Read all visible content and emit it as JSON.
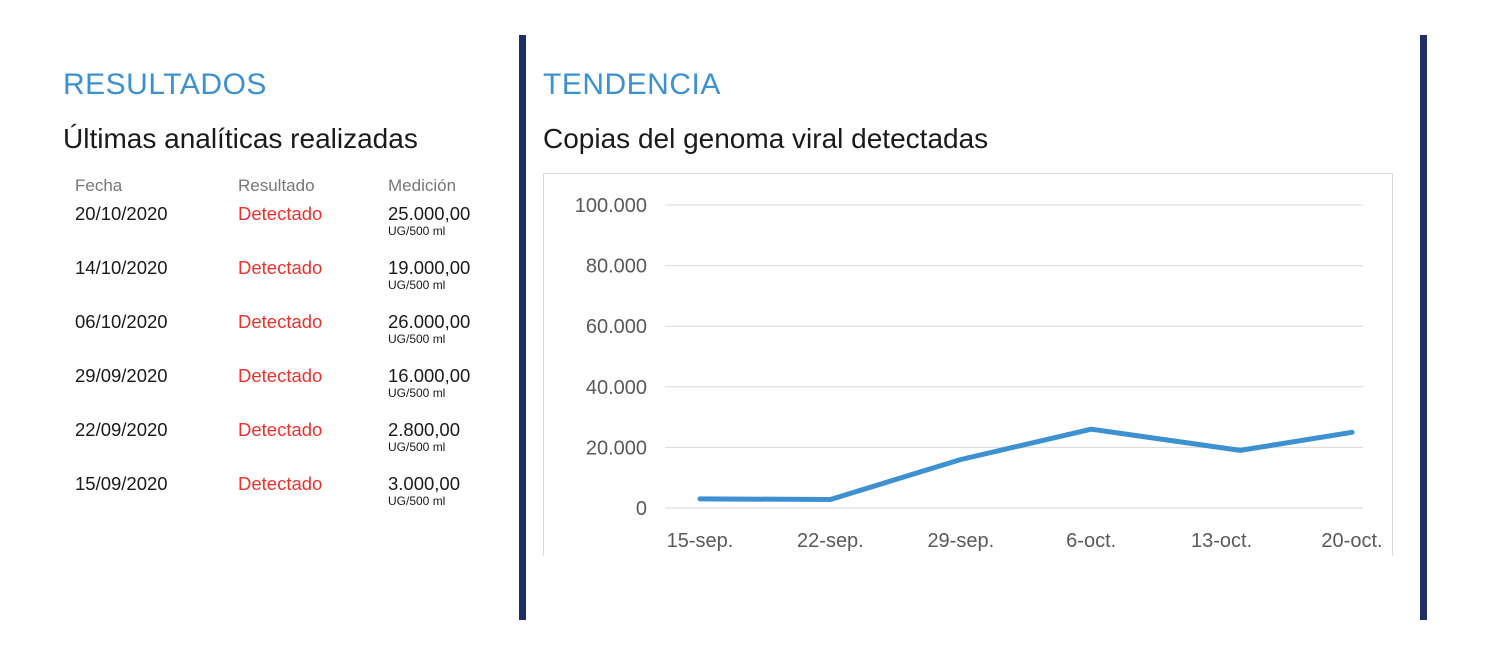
{
  "results": {
    "title": "RESULTADOS",
    "subtitle": "Últimas analíticas realizadas",
    "headers": {
      "date": "Fecha",
      "result": "Resultado",
      "measure": "Medición"
    },
    "rows": [
      {
        "date": "20/10/2020",
        "result": "Detectado",
        "value": "25.000,00",
        "unit": "UG/500 ml"
      },
      {
        "date": "14/10/2020",
        "result": "Detectado",
        "value": "19.000,00",
        "unit": "UG/500 ml"
      },
      {
        "date": "06/10/2020",
        "result": "Detectado",
        "value": "26.000,00",
        "unit": "UG/500 ml"
      },
      {
        "date": "29/09/2020",
        "result": "Detectado",
        "value": "16.000,00",
        "unit": "UG/500 ml"
      },
      {
        "date": "22/09/2020",
        "result": "Detectado",
        "value": "2.800,00",
        "unit": "UG/500 ml"
      },
      {
        "date": "15/09/2020",
        "result": "Detectado",
        "value": "3.000,00",
        "unit": "UG/500 ml"
      }
    ]
  },
  "trend": {
    "title": "TENDENCIA",
    "subtitle": "Copias del genoma viral detectadas"
  },
  "colors": {
    "accent": "#3d91d0",
    "divider": "#1f2e66",
    "detected": "#e8322c",
    "line": "#3d91d0"
  },
  "chart_data": {
    "type": "line",
    "title": "Copias del genoma viral detectadas",
    "x": [
      "15-sep.",
      "22-sep.",
      "29-sep.",
      "6-oct.",
      "13-oct.",
      "20-oct."
    ],
    "x_dates": [
      "2020-09-15",
      "2020-09-22",
      "2020-09-29",
      "2020-10-06",
      "2020-10-13",
      "2020-10-20"
    ],
    "series": [
      {
        "points": [
          {
            "date": "2020-09-15",
            "value": 3000
          },
          {
            "date": "2020-09-22",
            "value": 2800
          },
          {
            "date": "2020-09-29",
            "value": 16000
          },
          {
            "date": "2020-10-06",
            "value": 26000
          },
          {
            "date": "2020-10-14",
            "value": 19000
          },
          {
            "date": "2020-10-20",
            "value": 25000
          }
        ]
      }
    ],
    "y_ticks": [
      "0",
      "20.000",
      "40.000",
      "60.000",
      "80.000",
      "100.000"
    ],
    "ylim": [
      0,
      100000
    ],
    "grid": true,
    "legend": "none"
  }
}
